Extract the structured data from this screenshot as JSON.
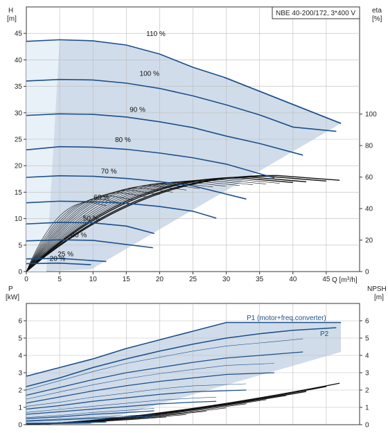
{
  "chart_data": [
    {
      "id": "head",
      "type": "line",
      "title": "NBE 40-200/172, 3*400 V",
      "xlabel": "Q [m³/h]",
      "ylabel": "H\n[m]",
      "y2label": "eta\n[%]",
      "xlim": [
        0,
        50
      ],
      "ylim": [
        0,
        50
      ],
      "xticks": [
        "0",
        "5",
        "10",
        "15",
        "20",
        "25",
        "30",
        "35",
        "40",
        "45"
      ],
      "yticks": [
        "0",
        "5",
        "10",
        "15",
        "20",
        "25",
        "30",
        "35",
        "40",
        "45"
      ],
      "y2ticks": [
        "0",
        "20",
        "40",
        "60",
        "80",
        "100"
      ],
      "y2lim": [
        0,
        168
      ],
      "grid": true,
      "envelope_color": "#d0dcea",
      "line_color": "#1b4f8a",
      "series": [
        {
          "name": "110 %",
          "x": [
            0,
            5,
            10,
            15,
            20,
            25,
            29.7,
            47.2
          ],
          "y": [
            43.5,
            43.8,
            43.6,
            42.8,
            41.1,
            38.6,
            36.7,
            28.0
          ]
        },
        {
          "name": "100 %",
          "x": [
            0,
            5,
            10,
            15,
            20,
            25,
            30,
            35,
            40,
            46.5
          ],
          "y": [
            36.0,
            36.3,
            36.2,
            35.6,
            34.6,
            33.2,
            31.5,
            29.6,
            27.3,
            26.5
          ]
        },
        {
          "name": "90 %",
          "x": [
            0,
            5,
            10,
            15,
            20,
            25,
            30,
            35,
            41.5
          ],
          "y": [
            29.5,
            29.8,
            29.7,
            29.2,
            28.3,
            27.2,
            25.6,
            24.2,
            22.0
          ]
        },
        {
          "name": "80 %",
          "x": [
            0,
            5,
            10,
            15,
            20,
            25,
            30,
            37.2
          ],
          "y": [
            23.0,
            23.6,
            23.5,
            23.1,
            22.4,
            21.5,
            20.3,
            17.7
          ]
        },
        {
          "name": "70 %",
          "x": [
            0,
            5,
            10,
            15,
            20,
            25,
            33
          ],
          "y": [
            17.8,
            18.1,
            18.0,
            17.6,
            17.0,
            16.2,
            13.7
          ]
        },
        {
          "name": "60 %",
          "x": [
            0,
            5,
            10,
            15,
            20,
            25,
            28.5
          ],
          "y": [
            13.0,
            13.3,
            13.2,
            12.9,
            12.3,
            11.4,
            10.1
          ]
        },
        {
          "name": "50 %",
          "x": [
            0,
            5,
            10,
            15,
            19.2
          ],
          "y": [
            9.0,
            9.3,
            9.2,
            8.6,
            7.2
          ]
        },
        {
          "name": "40 %",
          "x": [
            0,
            5,
            10,
            19
          ],
          "y": [
            5.8,
            6.0,
            5.9,
            4.5
          ]
        },
        {
          "name": "25 %",
          "x": [
            0,
            5,
            12
          ],
          "y": [
            2.4,
            2.5,
            1.9
          ]
        },
        {
          "name": "20 %",
          "x": [
            0,
            5,
            9.7
          ],
          "y": [
            1.5,
            1.6,
            1.3
          ]
        }
      ],
      "labels": [
        {
          "text": "110 %",
          "x": 18,
          "y": 44.5
        },
        {
          "text": "100 %",
          "x": 17,
          "y": 37.0
        },
        {
          "text": "90 %",
          "x": 15.5,
          "y": 30.2
        },
        {
          "text": "80 %",
          "x": 13.3,
          "y": 24.5
        },
        {
          "text": "70 %",
          "x": 11.2,
          "y": 18.5
        },
        {
          "text": "60 %",
          "x": 10.1,
          "y": 13.6
        },
        {
          "text": "50 %",
          "x": 8.5,
          "y": 9.6
        },
        {
          "text": "40 %",
          "x": 6.7,
          "y": 6.5
        },
        {
          "text": "25 %",
          "x": 4.7,
          "y": 2.9
        },
        {
          "text": "20 %",
          "x": 3.5,
          "y": 2.0
        }
      ],
      "efficiency_curves": {
        "count": 18,
        "max_eta": 60,
        "qmax": [
          47,
          45,
          42,
          40,
          38,
          36,
          34,
          32,
          30,
          28,
          26,
          24,
          22,
          20,
          18,
          16,
          14,
          12
        ],
        "peak": [
          61,
          60.5,
          60,
          59.5,
          59,
          58.5,
          58,
          57.5,
          57,
          56.5,
          55.5,
          54.5,
          53,
          51.5,
          50,
          48,
          46,
          44
        ]
      }
    },
    {
      "id": "power",
      "type": "line",
      "xlim": [
        0,
        50
      ],
      "ylim": [
        0,
        7
      ],
      "ylabel": "P\n[kW]",
      "y2label": "NPSH\n[m]",
      "yticks": [
        "0",
        "1",
        "2",
        "3",
        "4",
        "5",
        "6"
      ],
      "y2ticks": [
        "0",
        "1",
        "2",
        "3",
        "4",
        "5",
        "6"
      ],
      "grid": true,
      "series": [
        {
          "name": "P1 (motor+freq.converter)",
          "x": [
            0,
            5,
            10,
            15,
            20,
            25,
            30,
            47.2
          ],
          "y": [
            2.8,
            3.3,
            3.8,
            4.4,
            4.9,
            5.4,
            5.9,
            5.9
          ]
        },
        {
          "name": "P2",
          "x": [
            0,
            5,
            10,
            15,
            20,
            25,
            30,
            35,
            40,
            46.5
          ],
          "y": [
            2.2,
            2.7,
            3.3,
            3.8,
            4.25,
            4.65,
            5.0,
            5.25,
            5.45,
            5.6
          ]
        },
        {
          "name": "",
          "x": [
            0,
            5,
            10,
            15,
            20,
            25,
            30,
            35,
            41.5
          ],
          "y": [
            1.7,
            2.15,
            2.6,
            3.0,
            3.3,
            3.6,
            3.85,
            4.0,
            4.2
          ]
        },
        {
          "name": "",
          "x": [
            0,
            5,
            10,
            15,
            20,
            25,
            30,
            37.2
          ],
          "y": [
            1.25,
            1.6,
            1.95,
            2.25,
            2.5,
            2.7,
            2.9,
            3.0
          ]
        },
        {
          "name": "",
          "x": [
            0,
            5,
            10,
            15,
            20,
            25,
            33
          ],
          "y": [
            0.9,
            1.1,
            1.35,
            1.55,
            1.75,
            1.9,
            2.0
          ]
        },
        {
          "name": "",
          "x": [
            0,
            5,
            10,
            15,
            20,
            25,
            28.5
          ],
          "y": [
            0.6,
            0.75,
            0.9,
            1.05,
            1.2,
            1.3,
            1.35
          ]
        },
        {
          "name": "",
          "x": [
            0,
            5,
            10,
            15,
            19.2
          ],
          "y": [
            0.35,
            0.45,
            0.6,
            0.7,
            0.8
          ]
        },
        {
          "name": "",
          "x": [
            0,
            5,
            10,
            19
          ],
          "y": [
            0.2,
            0.28,
            0.36,
            0.5
          ]
        },
        {
          "name": "",
          "x": [
            0,
            5,
            12
          ],
          "y": [
            0.08,
            0.1,
            0.15
          ]
        },
        {
          "name": "",
          "x": [
            0,
            5,
            9.7
          ],
          "y": [
            0.05,
            0.07,
            0.1
          ]
        }
      ],
      "npsh": {
        "count": 10,
        "qmax": [
          47,
          45,
          42,
          39,
          36,
          33,
          30,
          27,
          24,
          21
        ],
        "end_y": [
          2.5,
          2.3,
          2.0,
          1.75,
          1.5,
          1.25,
          1.0,
          0.8,
          0.6,
          0.45
        ]
      }
    }
  ]
}
